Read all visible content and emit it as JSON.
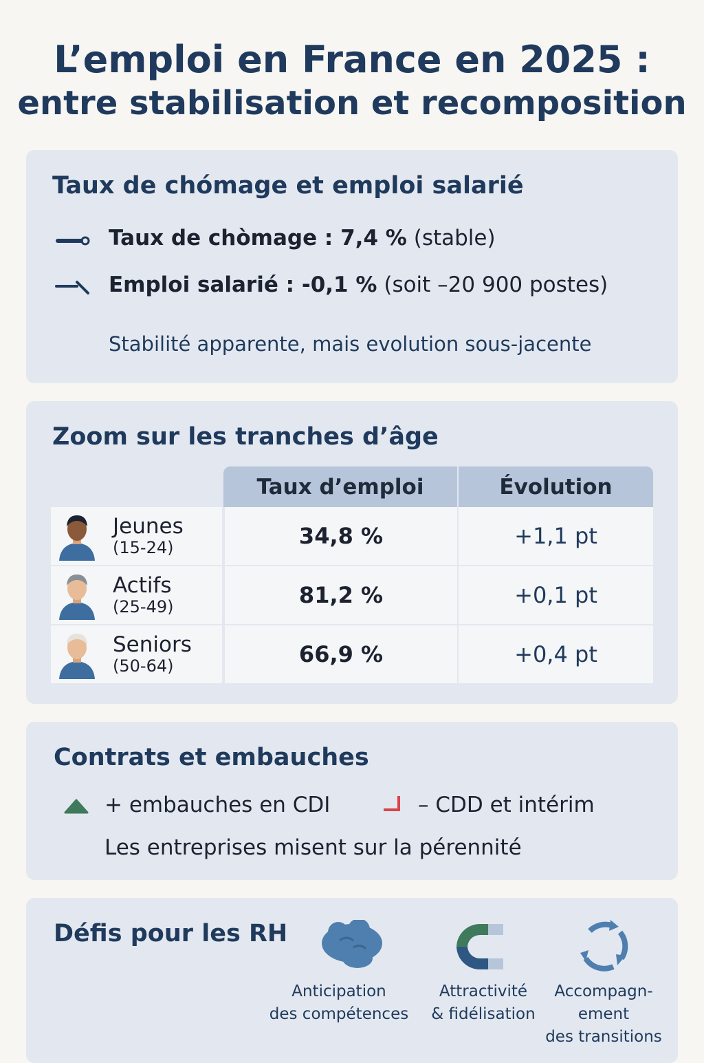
{
  "title": {
    "line1": "L’emploi en France en 2025 :",
    "line2": "entre stabilisation et recomposition"
  },
  "section1": {
    "heading": "Taux de chómage et emploi salarié",
    "unemployment": {
      "icon": "stable-line-icon",
      "label": "Taux de chòmage : 7,4 %",
      "note": "(stable)"
    },
    "employment": {
      "icon": "slight-decline-icon",
      "label": "Emploi salarié : -0,1 %",
      "note": "(soit –20 900 postes)"
    },
    "summary": "Stabilité apparente, mais evolution sous-jacente"
  },
  "section2": {
    "heading": "Zoom sur les tranches d’âge",
    "columns": [
      "Taux d’emploi",
      "Évolution"
    ],
    "rows": [
      {
        "group": "Jeunes",
        "range": "(15-24)",
        "rate": "34,8 %",
        "change": "+1,1 pt"
      },
      {
        "group": "Actifs",
        "range": "(25-49)",
        "rate": "81,2 %",
        "change": "+0,1 pt"
      },
      {
        "group": "Seniors",
        "range": "(50-64)",
        "rate": "66,9 %",
        "change": "+0,4 pt"
      }
    ]
  },
  "section3": {
    "heading": "Contrats et embauches",
    "cdi": "+ embauches en CDI",
    "cdd": "– CDD et intérim",
    "summary": "Les entreprises misent sur la pérennité",
    "colors": {
      "up": "#3f7a5c",
      "down": "#d9434a"
    }
  },
  "section4": {
    "heading": "Défis pour les RH",
    "items": [
      {
        "icon": "brain-icon",
        "line1": "Anticipation",
        "line2": "des compétences"
      },
      {
        "icon": "magnet-icon",
        "line1": "Attractivité",
        "line2": "& fidélisation"
      },
      {
        "icon": "cycle-arrows-icon",
        "line1": "Accompagn-",
        "line2": "ement",
        "line3": "des transitions"
      }
    ]
  }
}
